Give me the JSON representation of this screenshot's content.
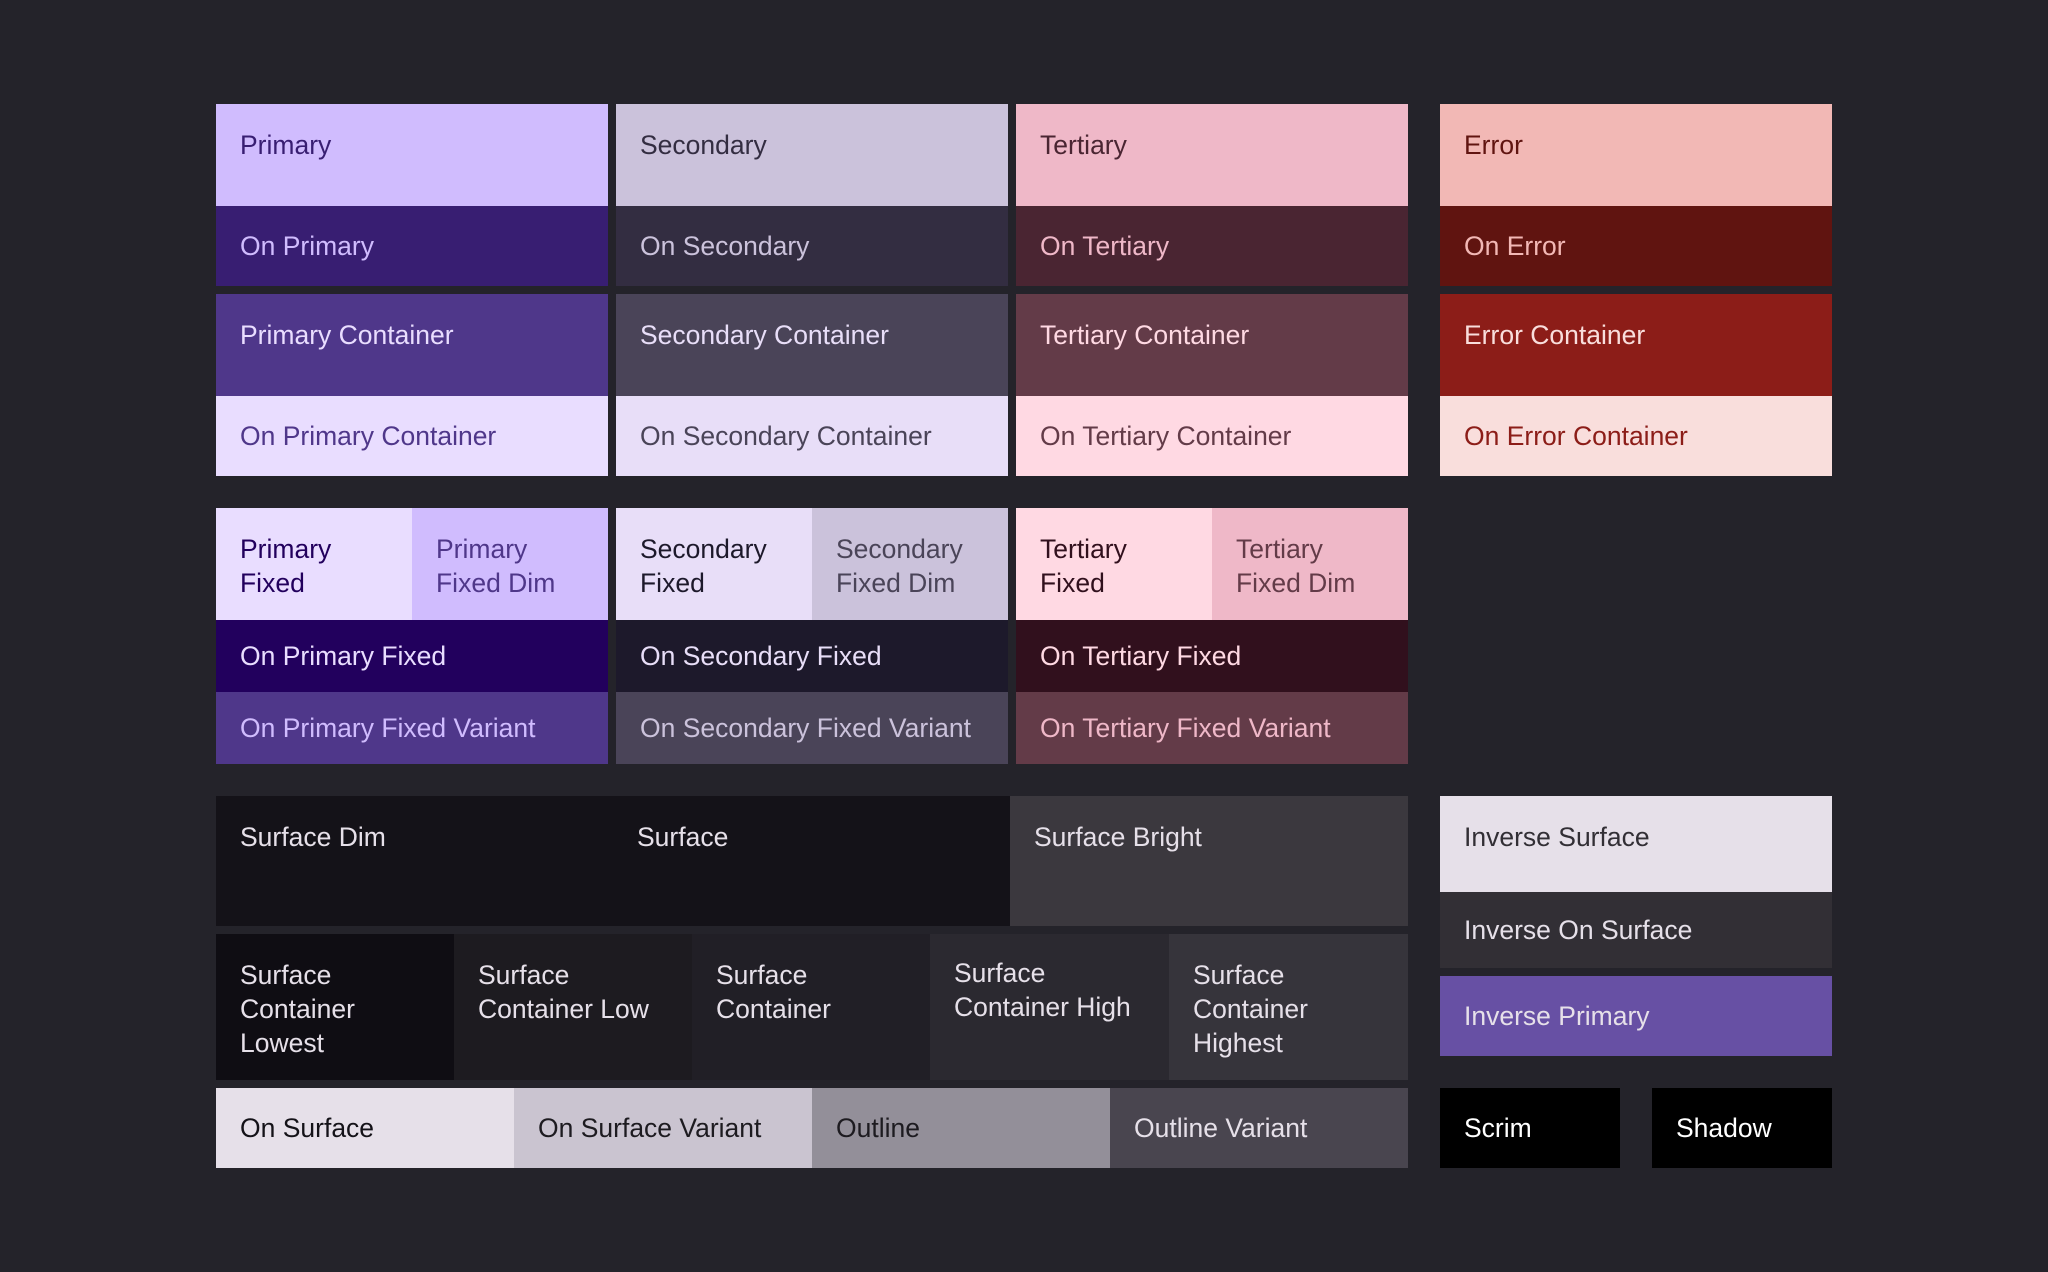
{
  "swatches": {
    "primary": {
      "label": "Primary",
      "bg": "#d0bcfe",
      "fg": "#381e72"
    },
    "on_primary": {
      "label": "On Primary",
      "bg": "#381e72",
      "fg": "#d0bcfe"
    },
    "primary_container": {
      "label": "Primary Container",
      "bg": "#4f378a",
      "fg": "#e9ddff"
    },
    "on_primary_container": {
      "label": "On Primary Container",
      "bg": "#e9ddff",
      "fg": "#4f378a"
    },
    "secondary": {
      "label": "Secondary",
      "bg": "#cbc2db",
      "fg": "#332d41"
    },
    "on_secondary": {
      "label": "On Secondary",
      "bg": "#332d41",
      "fg": "#cbc2db"
    },
    "secondary_container": {
      "label": "Secondary Container",
      "bg": "#4a4458",
      "fg": "#e8def8"
    },
    "on_secondary_container": {
      "label": "On Secondary Container",
      "bg": "#e8def8",
      "fg": "#4a4458"
    },
    "tertiary": {
      "label": "Tertiary",
      "bg": "#efb8c8",
      "fg": "#4a2532"
    },
    "on_tertiary": {
      "label": "On Tertiary",
      "bg": "#4a2532",
      "fg": "#efb8c8"
    },
    "tertiary_container": {
      "label": "Tertiary Container",
      "bg": "#633b48",
      "fg": "#ffd9e3"
    },
    "on_tertiary_container": {
      "label": "On Tertiary Container",
      "bg": "#ffd9e3",
      "fg": "#633b48"
    },
    "error": {
      "label": "Error",
      "bg": "#f2b8b5",
      "fg": "#601410"
    },
    "on_error": {
      "label": "On Error",
      "bg": "#601410",
      "fg": "#f2b8b5"
    },
    "error_container": {
      "label": "Error Container",
      "bg": "#8c1d18",
      "fg": "#f9dedc"
    },
    "on_error_container": {
      "label": "On Error Container",
      "bg": "#f9dedc",
      "fg": "#8c1d18"
    },
    "primary_fixed": {
      "label_1": "Primary",
      "label_2": "Fixed",
      "bg": "#e9ddff",
      "fg": "#22005d"
    },
    "primary_fixed_dim": {
      "label_1": "Primary",
      "label_2": "Fixed Dim",
      "bg": "#d0bcfe",
      "fg": "#4f378a"
    },
    "on_primary_fixed": {
      "label": "On Primary Fixed",
      "bg": "#22005d",
      "fg": "#e9ddff"
    },
    "on_primary_fixed_variant": {
      "label": "On Primary Fixed Variant",
      "bg": "#4f378a",
      "fg": "#d0bcfe"
    },
    "secondary_fixed": {
      "label_1": "Secondary",
      "label_2": "Fixed",
      "bg": "#e8def8",
      "fg": "#1d192b"
    },
    "secondary_fixed_dim": {
      "label_1": "Secondary",
      "label_2": "Fixed Dim",
      "bg": "#cbc2db",
      "fg": "#4a4458"
    },
    "on_secondary_fixed": {
      "label": "On Secondary Fixed",
      "bg": "#1d192b",
      "fg": "#e8def8"
    },
    "on_secondary_fixed_variant": {
      "label": "On Secondary Fixed Variant",
      "bg": "#4a4458",
      "fg": "#cbc2db"
    },
    "tertiary_fixed": {
      "label_1": "Tertiary",
      "label_2": "Fixed",
      "bg": "#ffd9e3",
      "fg": "#31101d"
    },
    "tertiary_fixed_dim": {
      "label_1": "Tertiary",
      "label_2": "Fixed Dim",
      "bg": "#efb8c8",
      "fg": "#633b48"
    },
    "on_tertiary_fixed": {
      "label": "On Tertiary Fixed",
      "bg": "#31101d",
      "fg": "#ffd9e3"
    },
    "on_tertiary_fixed_variant": {
      "label": "On Tertiary Fixed Variant",
      "bg": "#633b48",
      "fg": "#efb8c8"
    },
    "surface_dim": {
      "label": "Surface Dim",
      "bg": "#141218",
      "fg": "#e6e0e9"
    },
    "surface": {
      "label": "Surface",
      "bg": "#141218",
      "fg": "#e6e0e9"
    },
    "surface_bright": {
      "label": "Surface Bright",
      "bg": "#3b383e",
      "fg": "#e6e0e9"
    },
    "surface_container_lowest": {
      "label_1": "Surface",
      "label_2": "Container",
      "label_3": "Lowest",
      "bg": "#0f0d13",
      "fg": "#e6e0e9"
    },
    "surface_container_low": {
      "label_1": "Surface",
      "label_2": "Container Low",
      "bg": "#1d1b20",
      "fg": "#e6e0e9"
    },
    "surface_container": {
      "label_1": "Surface",
      "label_2": "Container",
      "bg": "#211f26",
      "fg": "#e6e0e9"
    },
    "surface_container_high": {
      "label_1": "Surface",
      "label_2": "Container High",
      "bg": "#2b2930",
      "fg": "#e6e0e9"
    },
    "surface_container_highest": {
      "label_1": "Surface",
      "label_2": "Container",
      "label_3": "Highest",
      "bg": "#36343b",
      "fg": "#e6e0e9"
    },
    "on_surface": {
      "label": "On Surface",
      "bg": "#e6e0e9",
      "fg": "#141218"
    },
    "on_surface_variant": {
      "label": "On Surface Variant",
      "bg": "#cac4d0",
      "fg": "#1d1b20"
    },
    "outline": {
      "label": "Outline",
      "bg": "#938f99",
      "fg": "#1d1b20"
    },
    "outline_variant": {
      "label": "Outline Variant",
      "bg": "#49454f",
      "fg": "#e6e0e9"
    },
    "inverse_surface": {
      "label": "Inverse Surface",
      "bg": "#e6e0e9",
      "fg": "#322f35"
    },
    "inverse_on_surface": {
      "label": "Inverse On Surface",
      "bg": "#322f35",
      "fg": "#e6e0e9"
    },
    "inverse_primary": {
      "label": "Inverse Primary",
      "bg": "#6750a4",
      "fg": "#e6e0e9"
    },
    "scrim": {
      "label": "Scrim",
      "bg": "#000000",
      "fg": "#ffffff"
    },
    "shadow": {
      "label": "Shadow",
      "bg": "#000000",
      "fg": "#ffffff"
    }
  }
}
